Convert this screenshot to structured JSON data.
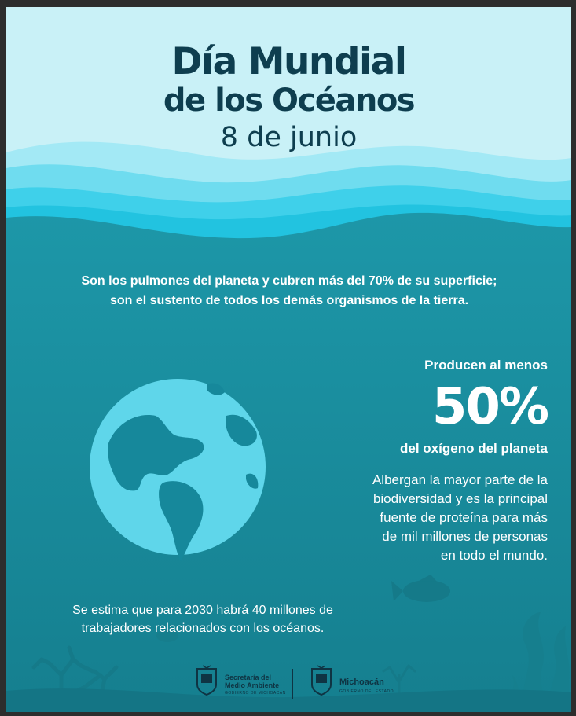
{
  "header": {
    "title_line1": "Día Mundial",
    "title_line2": "de los Océanos",
    "date": "8 de junio"
  },
  "intro": {
    "line1": "Son los pulmones del planeta y cubren más del 70% de su superficie;",
    "line2": "son el sustento de todos los demás organismos de la tierra."
  },
  "oxygen": {
    "lead": "Producen al menos",
    "value": "50%",
    "tail": "del oxígeno del planeta"
  },
  "biodiversity": {
    "lines": [
      "Albergan la mayor parte de la",
      "biodiversidad y es la principal",
      "fuente de proteína para más",
      "de mil millones de personas",
      "en todo el mundo."
    ]
  },
  "estimate": {
    "line1": "Se estima que para 2030 habrá 40 millones de",
    "line2": "trabajadores relacionados con los océanos."
  },
  "logos": {
    "secretaria": {
      "line1": "Secretaría del",
      "line2": "Medio Ambiente",
      "subtitle": "GOBIERNO DE MICHOACÁN"
    },
    "michoacan": {
      "name": "Michoacán",
      "subtitle": "GOBIERNO DEL ESTADO"
    }
  },
  "colors": {
    "sky": "#c9f1f7",
    "wave_light": "#8ae3f2",
    "wave_mid": "#4fd3ec",
    "wave_bright": "#27c9e6",
    "ocean": "#1a8fa0",
    "ocean_deep": "#157f8f",
    "globe": "#5fd6ea",
    "land": "#16889b",
    "title": "#0e3e4f"
  }
}
